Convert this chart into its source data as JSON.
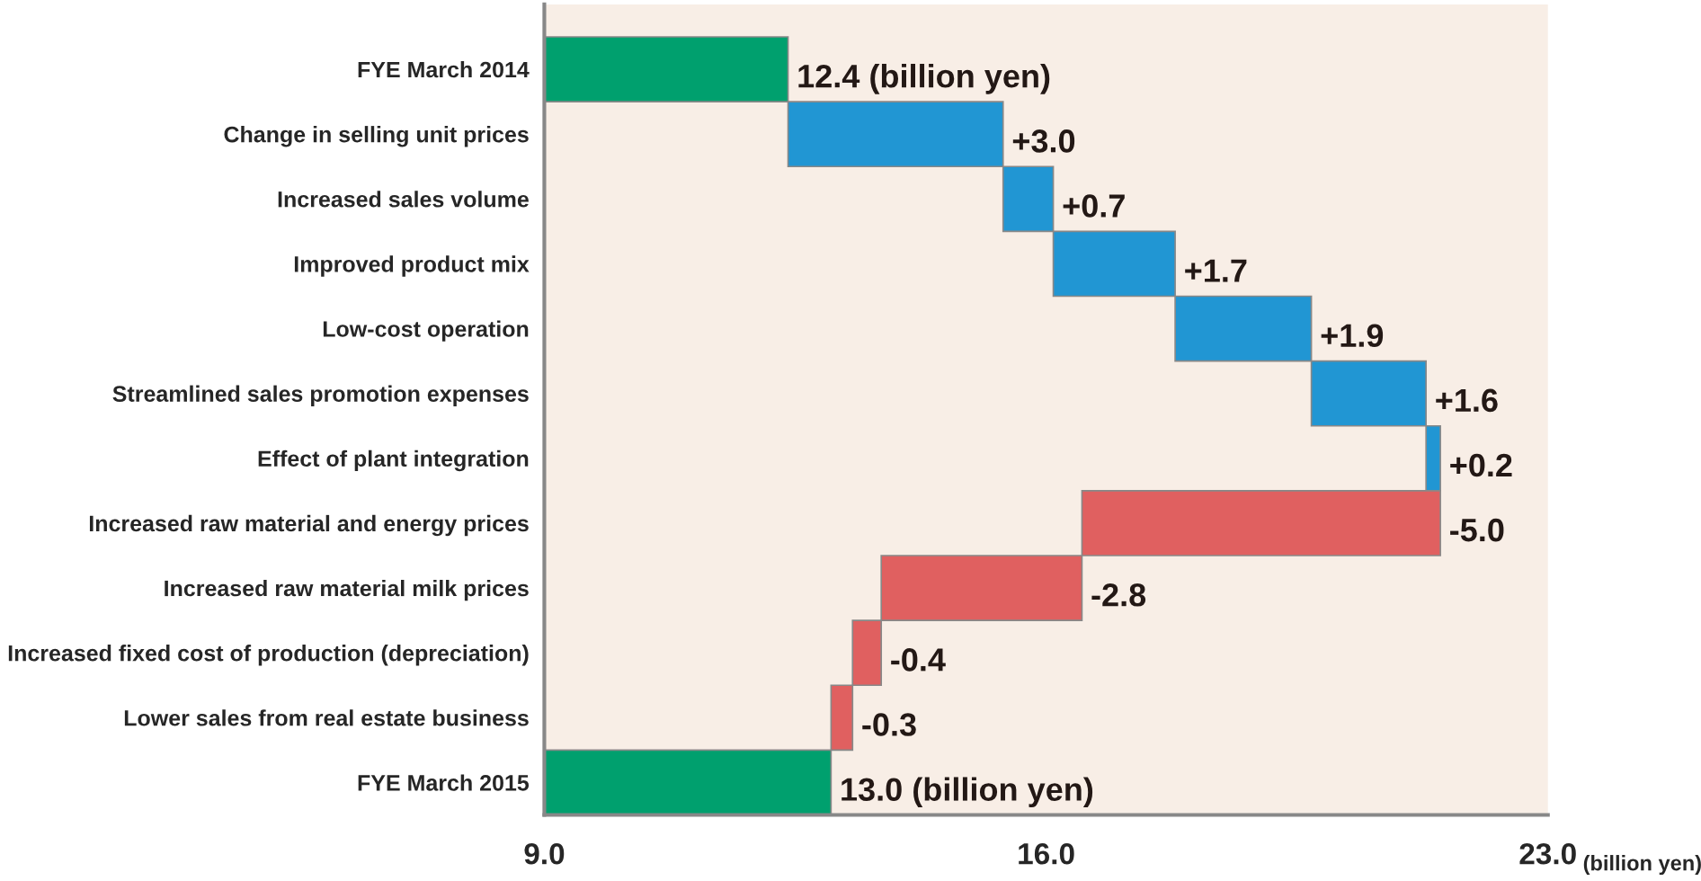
{
  "chart_data": {
    "type": "bar",
    "orientation": "horizontal",
    "categories": [
      "FYE March 2014",
      "Change in selling unit prices",
      "Increased sales volume",
      "Improved product mix",
      "Low-cost operation",
      "Streamlined sales promotion expenses",
      "Effect of plant integration",
      "Increased raw material and energy prices",
      "Increased raw material milk prices",
      "Increased fixed cost of production (depreciation)",
      "Lower sales from real estate business",
      "FYE March 2015"
    ],
    "values": [
      12.4,
      3.0,
      0.7,
      1.7,
      1.9,
      1.6,
      0.2,
      -5.0,
      -2.8,
      -0.4,
      -0.3,
      13.0
    ],
    "base": [
      0,
      12.4,
      15.4,
      16.1,
      17.8,
      19.7,
      21.3,
      21.5,
      16.5,
      13.7,
      13.3,
      0
    ],
    "colors": [
      "#00a06e",
      "#2196d3",
      "#2196d3",
      "#2196d3",
      "#2196d3",
      "#2196d3",
      "#2196d3",
      "#e06060",
      "#e06060",
      "#e06060",
      "#e06060",
      "#00a06e"
    ],
    "value_labels": [
      "12.4 (billion yen)",
      "+3.0",
      "+0.7",
      "+1.7",
      "+1.9",
      "+1.6",
      "+0.2",
      "-5.0",
      "-2.8",
      "-0.4",
      "-0.3",
      "13.0 (billion yen)"
    ],
    "xlim": [
      9.0,
      23.0
    ],
    "xticks": [
      {
        "value": 9.0,
        "label": "9.0"
      },
      {
        "value": 16.0,
        "label": "16.0"
      },
      {
        "value": 23.0,
        "label": "23.0"
      }
    ],
    "xlabel": "(billion yen)",
    "grid": false,
    "legend": false
  }
}
